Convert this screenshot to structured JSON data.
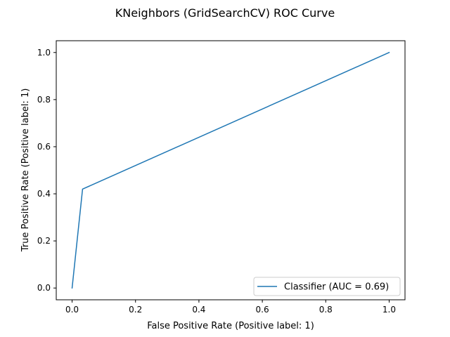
{
  "chart_data": {
    "type": "line",
    "title": "KNeighbors (GridSearchCV) ROC Curve",
    "xlabel": "False Positive Rate (Positive label: 1)",
    "ylabel": "True Positive Rate (Positive label: 1)",
    "xlim": [
      -0.05,
      1.05
    ],
    "ylim": [
      -0.05,
      1.05
    ],
    "xticks": [
      "0.0",
      "0.2",
      "0.4",
      "0.6",
      "0.8",
      "1.0"
    ],
    "yticks": [
      "0.0",
      "0.2",
      "0.4",
      "0.6",
      "0.8",
      "1.0"
    ],
    "grid": false,
    "legend_position": "lower-right",
    "series": [
      {
        "name": "Classifier (AUC = 0.69)",
        "color": "#1f77b4",
        "x": [
          0.0,
          0.033,
          1.0
        ],
        "y": [
          0.0,
          0.42,
          1.0
        ]
      }
    ]
  }
}
